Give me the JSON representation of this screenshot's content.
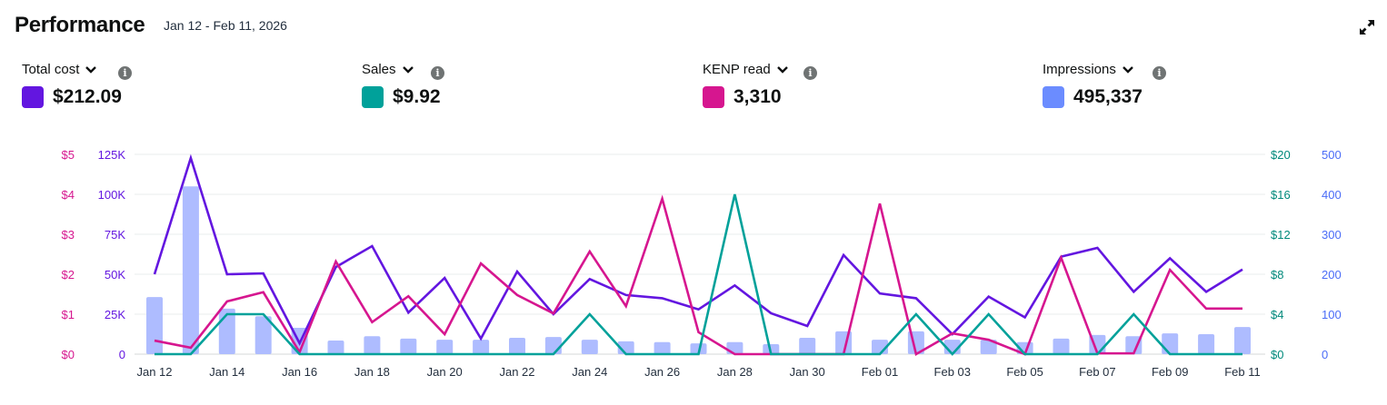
{
  "header": {
    "title": "Performance",
    "date_range": "Jan 12 - Feb 11, 2026"
  },
  "metrics": [
    {
      "label": "Total cost",
      "value": "$212.09",
      "color": "#6316e0"
    },
    {
      "label": "Sales",
      "value": "$9.92",
      "color": "#00a19a"
    },
    {
      "label": "KENP read",
      "value": "3,310",
      "color": "#d6168f"
    },
    {
      "label": "Impressions",
      "value": "495,337",
      "color": "#6b8cff"
    }
  ],
  "chart_data": {
    "type": "line",
    "categories": [
      "Jan 12",
      "Jan 13",
      "Jan 14",
      "Jan 15",
      "Jan 16",
      "Jan 17",
      "Jan 18",
      "Jan 19",
      "Jan 20",
      "Jan 21",
      "Jan 22",
      "Jan 23",
      "Jan 24",
      "Jan 25",
      "Jan 26",
      "Jan 27",
      "Jan 28",
      "Jan 29",
      "Jan 30",
      "Jan 31",
      "Feb 01",
      "Feb 02",
      "Feb 03",
      "Feb 04",
      "Feb 05",
      "Feb 06",
      "Feb 07",
      "Feb 08",
      "Feb 09",
      "Feb 10",
      "Feb 11"
    ],
    "x_tick_labels": [
      "Jan 12",
      "Jan 14",
      "Jan 16",
      "Jan 18",
      "Jan 20",
      "Jan 22",
      "Jan 24",
      "Jan 26",
      "Jan 28",
      "Jan 30",
      "Feb 01",
      "Feb 03",
      "Feb 05",
      "Feb 07",
      "Feb 09",
      "Feb 11"
    ],
    "axes": {
      "left_outer": {
        "ticks": [
          "$0",
          "$1",
          "$2",
          "$3",
          "$4",
          "$5"
        ],
        "range": [
          0,
          5
        ],
        "color": "#d6168f"
      },
      "left_inner": {
        "ticks": [
          "0",
          "25K",
          "50K",
          "75K",
          "100K",
          "125K"
        ],
        "range": [
          0,
          125
        ],
        "color": "#6316e0"
      },
      "right_inner": {
        "ticks": [
          "$0",
          "$4",
          "$8",
          "$12",
          "$16",
          "$20"
        ],
        "range": [
          0,
          20
        ],
        "color": "#00897b"
      },
      "right_outer": {
        "ticks": [
          "0",
          "100",
          "200",
          "300",
          "400",
          "500"
        ],
        "range": [
          0,
          500
        ],
        "color": "#4a6cf7"
      }
    },
    "grid": true,
    "series": [
      {
        "name": "Impressions",
        "type": "bar",
        "axis": "right_outer",
        "color": "#aebcff",
        "values": [
          143,
          420,
          114,
          95,
          66,
          34,
          45,
          39,
          36,
          36,
          41,
          43,
          36,
          32,
          30,
          27,
          30,
          25,
          41,
          57,
          36,
          57,
          36,
          36,
          30,
          39,
          48,
          45,
          52,
          50,
          68
        ]
      },
      {
        "name": "Total cost",
        "type": "line",
        "axis": "left_inner",
        "color": "#6316e0",
        "values": [
          50,
          122.7,
          50,
          50.5,
          6.8,
          54.5,
          67.6,
          26,
          47.7,
          9.7,
          51.7,
          25,
          47,
          37,
          35,
          28,
          43,
          25.6,
          17.6,
          62,
          38,
          35,
          12.5,
          36,
          23,
          61,
          66.5,
          39,
          60,
          39,
          53
        ]
      },
      {
        "name": "KENP read",
        "type": "line",
        "axis": "left_outer",
        "color": "#d6168f",
        "values": [
          0.34,
          0.16,
          1.32,
          1.55,
          0.05,
          2.32,
          0.8,
          1.45,
          0.5,
          2.27,
          1.48,
          1.02,
          2.57,
          1.2,
          3.89,
          0.55,
          0,
          0,
          0,
          0,
          3.77,
          0,
          0.52,
          0.36,
          0,
          2.41,
          0.02,
          0.02,
          2.11,
          1.14,
          1.14
        ]
      },
      {
        "name": "Sales",
        "type": "line",
        "axis": "right_inner",
        "color": "#00a19a",
        "values": [
          0,
          0,
          4,
          4,
          0,
          0,
          0,
          0,
          0,
          0,
          0,
          0,
          4,
          0,
          0,
          0,
          16,
          0,
          0,
          0,
          0,
          4,
          0,
          4,
          0,
          0,
          0,
          4,
          0,
          0,
          0
        ]
      }
    ]
  }
}
